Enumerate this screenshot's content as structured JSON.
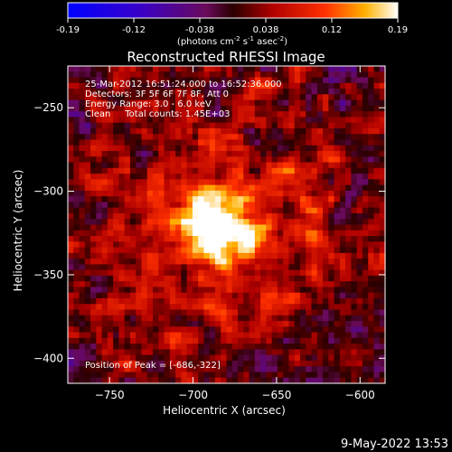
{
  "chart_data": {
    "type": "heatmap",
    "title": "Reconstructed RHESSI Image",
    "xlabel": "Heliocentric X (arcsec)",
    "ylabel": "Heliocentric Y (arcsec)",
    "xlim": [
      -775,
      -585
    ],
    "ylim": [
      -415,
      -225
    ],
    "xticks": [
      -750,
      -700,
      -650,
      -600
    ],
    "yticks": [
      -250,
      -300,
      -350,
      -400
    ],
    "colorbar": {
      "min": -0.19,
      "max": 0.19,
      "ticks": [
        "-0.19",
        "-0.12",
        "-0.038",
        "0.038",
        "0.12",
        "0.19"
      ],
      "unit_prefix": "(photons cm",
      "unit_exp1": "-2",
      "unit_mid": " s",
      "unit_exp2": "-1",
      "unit_mid2": " asec",
      "unit_exp3": "-2",
      "unit_suffix": ")"
    },
    "annotations": [
      "25-Mar-2012 16:51:24.000 to 16:52:36.000",
      "Detectors: 3F 5F 6F 7F 8F, Att 0",
      "Energy Range: 3.0 - 6.0 keV",
      "Clean     Total counts: 1.45E+03"
    ],
    "peak_label": "Position of Peak = [-686,-322]",
    "peak": {
      "x": -686,
      "y": -322,
      "value": 0.19
    }
  },
  "footer": {
    "timestamp": "9-May-2022 13:53"
  },
  "colors": {
    "background": "#000000",
    "text": "#ffffff"
  }
}
